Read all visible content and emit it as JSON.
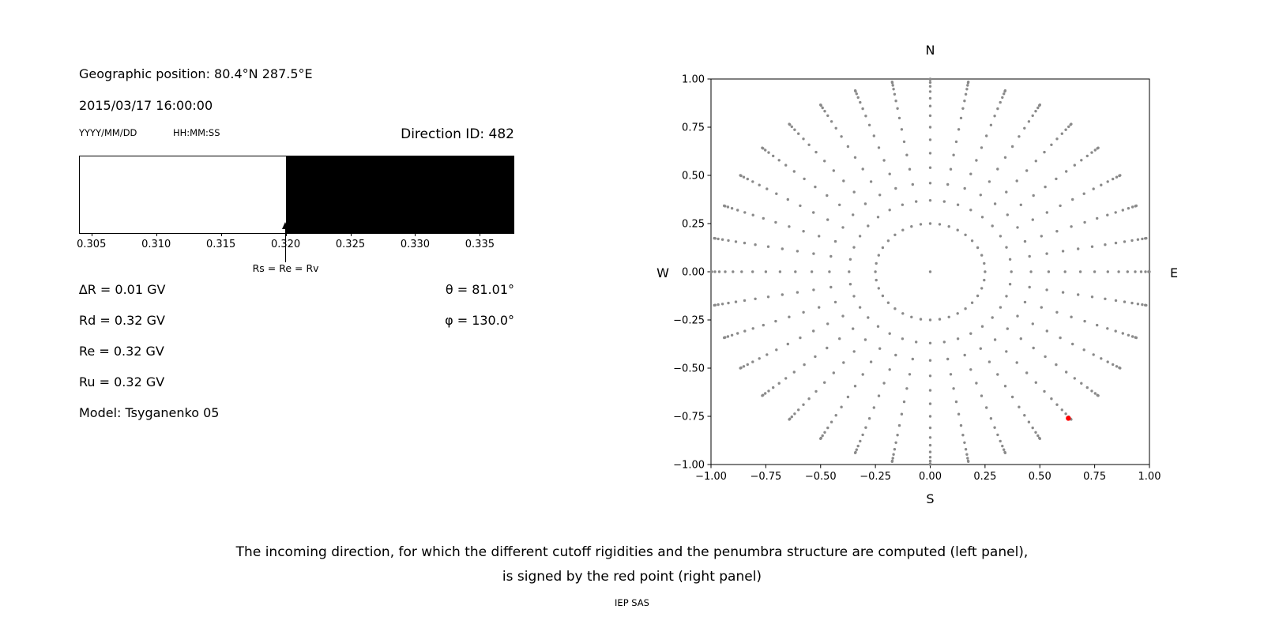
{
  "figure": {
    "background": "#ffffff",
    "text_color": "#000000"
  },
  "left_panel": {
    "geographic_position": "Geographic position: 80.4°N 287.5°E",
    "datetime": "2015/03/17 16:00:00",
    "date_format_label": "YYYY/MM/DD",
    "time_format_label": "HH:MM:SS",
    "direction_id_label": "Direction ID: 482",
    "rigidity_lines": [
      "∆R = 0.01 GV",
      "Rd = 0.32 GV",
      "Re = 0.32 GV",
      "Ru = 0.32 GV",
      "Model: Tsyganenko 05"
    ],
    "theta_label": "θ = 81.01°",
    "phi_label": "φ = 130.0°"
  },
  "caption": {
    "line1": "The incoming direction, for which the different cutoff rigidities and the penumbra structure are computed (left panel),",
    "line2": "is signed by the red point (right panel)",
    "credit": "IEP SAS"
  },
  "chart_data": [
    {
      "type": "bar",
      "name": "penumbra-structure",
      "xlim": [
        0.3041,
        0.3376
      ],
      "xticks": [
        0.305,
        0.31,
        0.315,
        0.32,
        0.325,
        0.33,
        0.335
      ],
      "xtick_labels": [
        "0.305",
        "0.310",
        "0.315",
        "0.320",
        "0.325",
        "0.330",
        "0.335"
      ],
      "segments": [
        {
          "from": 0.3041,
          "to": 0.32,
          "color": "#ffffff"
        },
        {
          "from": 0.32,
          "to": 0.3376,
          "color": "#000000"
        }
      ],
      "arrow": {
        "x": 0.32,
        "label": "Rs = Re = Rv"
      }
    },
    {
      "type": "scatter",
      "name": "incoming-direction-map",
      "xlim": [
        -1,
        1
      ],
      "ylim": [
        -1,
        1
      ],
      "grid": false,
      "xticks": [
        -1.0,
        -0.75,
        -0.5,
        -0.25,
        0.0,
        0.25,
        0.5,
        0.75,
        1.0
      ],
      "xtick_labels": [
        "−1.00",
        "−0.75",
        "−0.50",
        "−0.25",
        "0.00",
        "0.25",
        "0.50",
        "0.75",
        "1.00"
      ],
      "yticks": [
        -1.0,
        -0.75,
        -0.5,
        -0.25,
        0.0,
        0.25,
        0.5,
        0.75,
        1.0
      ],
      "ytick_labels": [
        "−1.00",
        "−0.75",
        "−0.50",
        "−0.25",
        "0.00",
        "0.25",
        "0.50",
        "0.75",
        "1.00"
      ],
      "axis_labels": {
        "top": "N",
        "bottom": "S",
        "left": "W",
        "right": "E"
      },
      "dot_color": "#8a8a8a",
      "dot_radius_px": 1.7,
      "dot_pattern": {
        "center_dot": [
          0,
          0
        ],
        "ray_count": 36,
        "ray_azimuth_start_deg": 0,
        "ray_azimuth_step_deg": 10,
        "ray_radii": [
          0.25,
          0.37,
          0.46,
          0.54,
          0.615,
          0.685,
          0.75,
          0.81,
          0.86,
          0.9,
          0.935,
          0.962,
          0.982,
          0.996,
          1.0
        ]
      },
      "red_point": {
        "x": 0.63,
        "y": -0.76,
        "color": "#ff0000",
        "radius_px": 3.2
      }
    }
  ]
}
